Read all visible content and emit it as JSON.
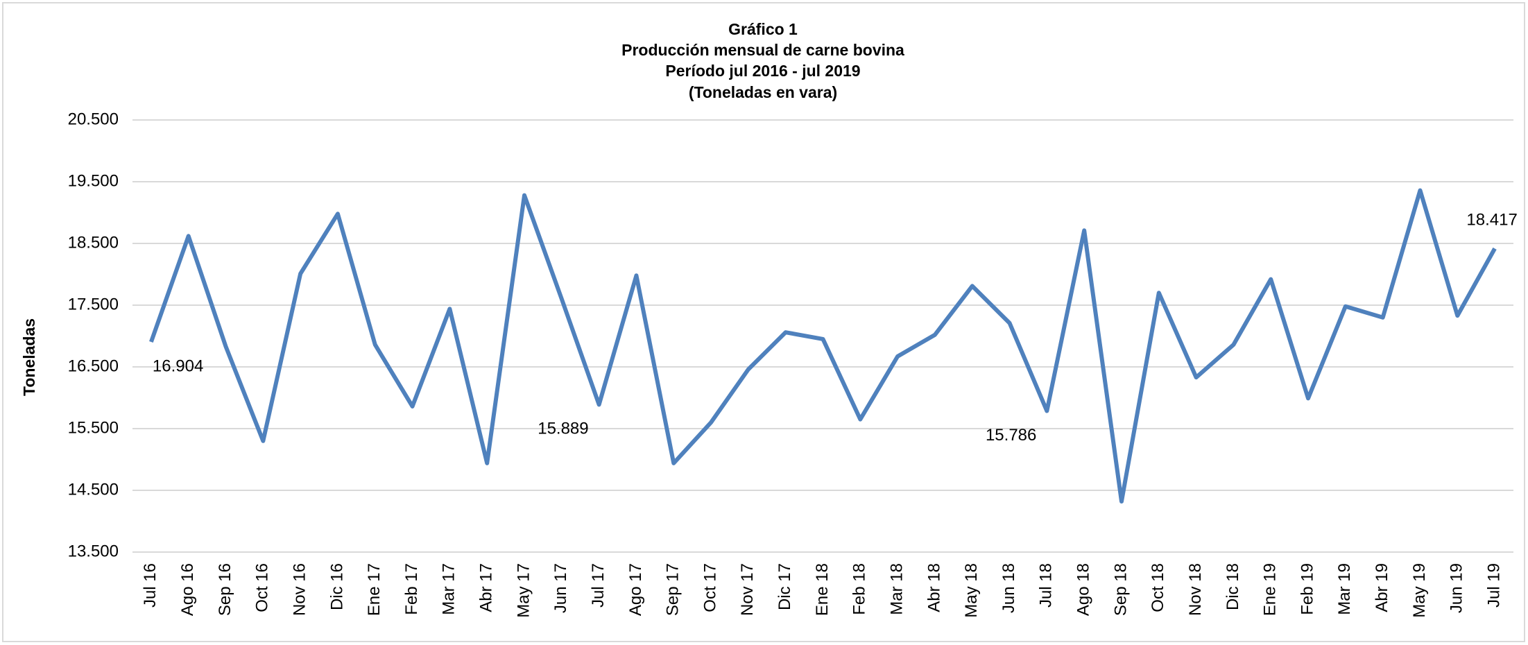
{
  "chart_data": {
    "type": "line",
    "title": "Gráfico 1",
    "subtitle": [
      "Producción mensual de carne bovina",
      "Período jul 2016 -  jul 2019",
      "(Toneladas en vara)"
    ],
    "y_label": "Toneladas",
    "categories": [
      "Jul 16",
      "Ago 16",
      "Sep 16",
      "Oct 16",
      "Nov 16",
      "Dic 16",
      "Ene 17",
      "Feb 17",
      "Mar 17",
      "Abr 17",
      "May 17",
      "Jun 17",
      "Jul 17",
      "Ago 17",
      "Sep 17",
      "Oct 17",
      "Nov 17",
      "Dic 17",
      "Ene 18",
      "Feb 18",
      "Mar 18",
      "Abr 18",
      "May 18",
      "Jun 18",
      "Jul 18",
      "Ago 18",
      "Sep 18",
      "Oct 18",
      "Nov 18",
      "Dic 18",
      "Ene 19",
      "Feb 19",
      "Mar 19",
      "Abr 19",
      "May 19",
      "Jun 19",
      "Jul 19"
    ],
    "values": [
      16904,
      18620,
      16830,
      15300,
      18010,
      18980,
      16860,
      15860,
      17440,
      14940,
      19280,
      17600,
      15889,
      17980,
      14940,
      15600,
      16460,
      17060,
      16950,
      15650,
      16670,
      17020,
      17810,
      17210,
      15786,
      18710,
      14320,
      17700,
      16330,
      16860,
      17920,
      15990,
      17480,
      17300,
      19360,
      17330,
      18417
    ],
    "value_labels": [
      "16.904",
      null,
      null,
      null,
      null,
      null,
      null,
      null,
      null,
      null,
      null,
      null,
      "15.889",
      null,
      null,
      null,
      null,
      null,
      null,
      null,
      null,
      null,
      null,
      null,
      "15.786",
      null,
      null,
      null,
      null,
      null,
      null,
      null,
      null,
      null,
      null,
      null,
      "18.417"
    ],
    "color": "#4f81bd",
    "ylim": [
      13500,
      20500
    ],
    "yticks": [
      {
        "value": 13500,
        "label": "13.500"
      },
      {
        "value": 14500,
        "label": "14.500"
      },
      {
        "value": 15500,
        "label": "15.500"
      },
      {
        "value": 16500,
        "label": "16.500"
      },
      {
        "value": 17500,
        "label": "17.500"
      },
      {
        "value": 18500,
        "label": "18.500"
      },
      {
        "value": 19500,
        "label": "19.500"
      },
      {
        "value": 20500,
        "label": "20.500"
      }
    ],
    "grid": true
  }
}
